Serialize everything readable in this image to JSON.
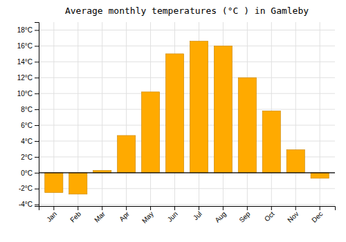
{
  "chart_data": {
    "type": "bar",
    "title": "Average monthly temperatures (°C ) in Gamleby",
    "categories": [
      "Jan",
      "Feb",
      "Mar",
      "Apr",
      "May",
      "Jun",
      "Jul",
      "Aug",
      "Sep",
      "Oct",
      "Nov",
      "Dec"
    ],
    "values": [
      -2.5,
      -2.7,
      0.3,
      4.7,
      10.2,
      15.0,
      16.6,
      16.0,
      12.0,
      7.8,
      2.9,
      -0.7
    ],
    "color": "#FFAA00",
    "ylim": [
      -4.2,
      19.0
    ],
    "yticks": [
      {
        "value": -4,
        "label": "-4°C"
      },
      {
        "value": -2,
        "label": "-2°C"
      },
      {
        "value": 0,
        "label": "0°C"
      },
      {
        "value": 2,
        "label": "2°C"
      },
      {
        "value": 4,
        "label": "4°C"
      },
      {
        "value": 6,
        "label": "6°C"
      },
      {
        "value": 8,
        "label": "8°C"
      },
      {
        "value": 10,
        "label": "10°C"
      },
      {
        "value": 12,
        "label": "12°C"
      },
      {
        "value": 14,
        "label": "14°C"
      },
      {
        "value": 16,
        "label": "16°C"
      },
      {
        "value": 18,
        "label": "18°C"
      }
    ],
    "grid": true
  }
}
